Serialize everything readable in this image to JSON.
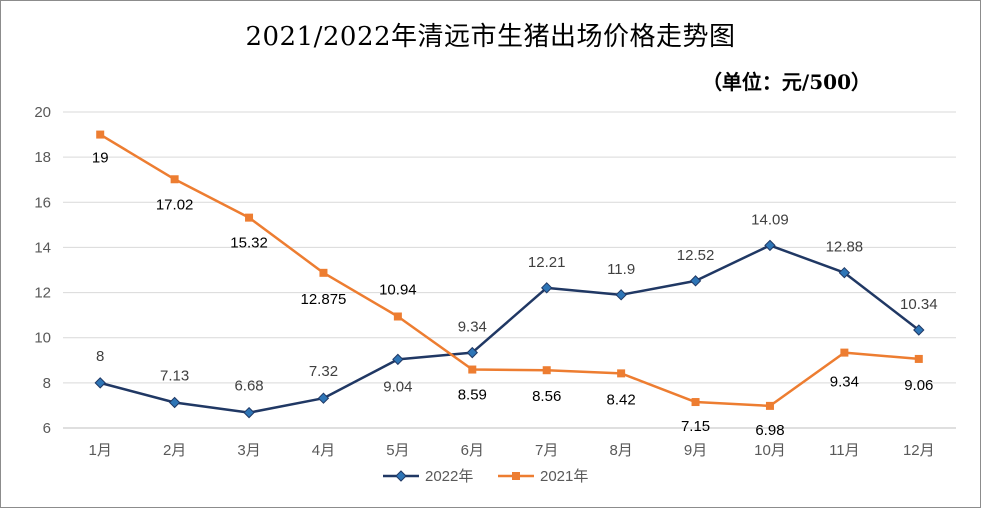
{
  "chart_data": {
    "type": "line",
    "title": "2021/2022年清远市生猪出场价格走势图",
    "unit": "（单位：元/500）",
    "categories": [
      "1月",
      "2月",
      "3月",
      "4月",
      "5月",
      "6月",
      "7月",
      "8月",
      "9月",
      "10月",
      "11月",
      "12月"
    ],
    "ylim": [
      6,
      20
    ],
    "yticks": [
      6,
      8,
      10,
      12,
      14,
      16,
      18,
      20
    ],
    "grid": true,
    "legend_position": "bottom",
    "series": [
      {
        "name": "2022年",
        "color": "#203864",
        "marker": "diamond",
        "marker_color": "#2e75b6",
        "label_color": "#404040",
        "values": [
          8,
          7.13,
          6.68,
          7.32,
          9.04,
          9.34,
          12.21,
          11.9,
          12.52,
          14.09,
          12.88,
          10.34
        ],
        "labels": [
          "8",
          "7.13",
          "6.68",
          "7.32",
          "9.04",
          "9.34",
          "12.21",
          "11.9",
          "12.52",
          "14.09",
          "12.88",
          "10.34"
        ]
      },
      {
        "name": "2021年",
        "color": "#ed7d31",
        "marker": "square",
        "marker_color": "#ed7d31",
        "label_color": "#000000",
        "values": [
          19,
          17.02,
          15.32,
          12.875,
          10.94,
          8.59,
          8.56,
          8.42,
          7.15,
          6.98,
          9.34,
          9.06
        ],
        "labels": [
          "19",
          "17.02",
          "15.32",
          "12.875",
          "10.94",
          "8.59",
          "8.56",
          "8.42",
          "7.15",
          "6.98",
          "9.34",
          "9.06"
        ]
      }
    ]
  }
}
